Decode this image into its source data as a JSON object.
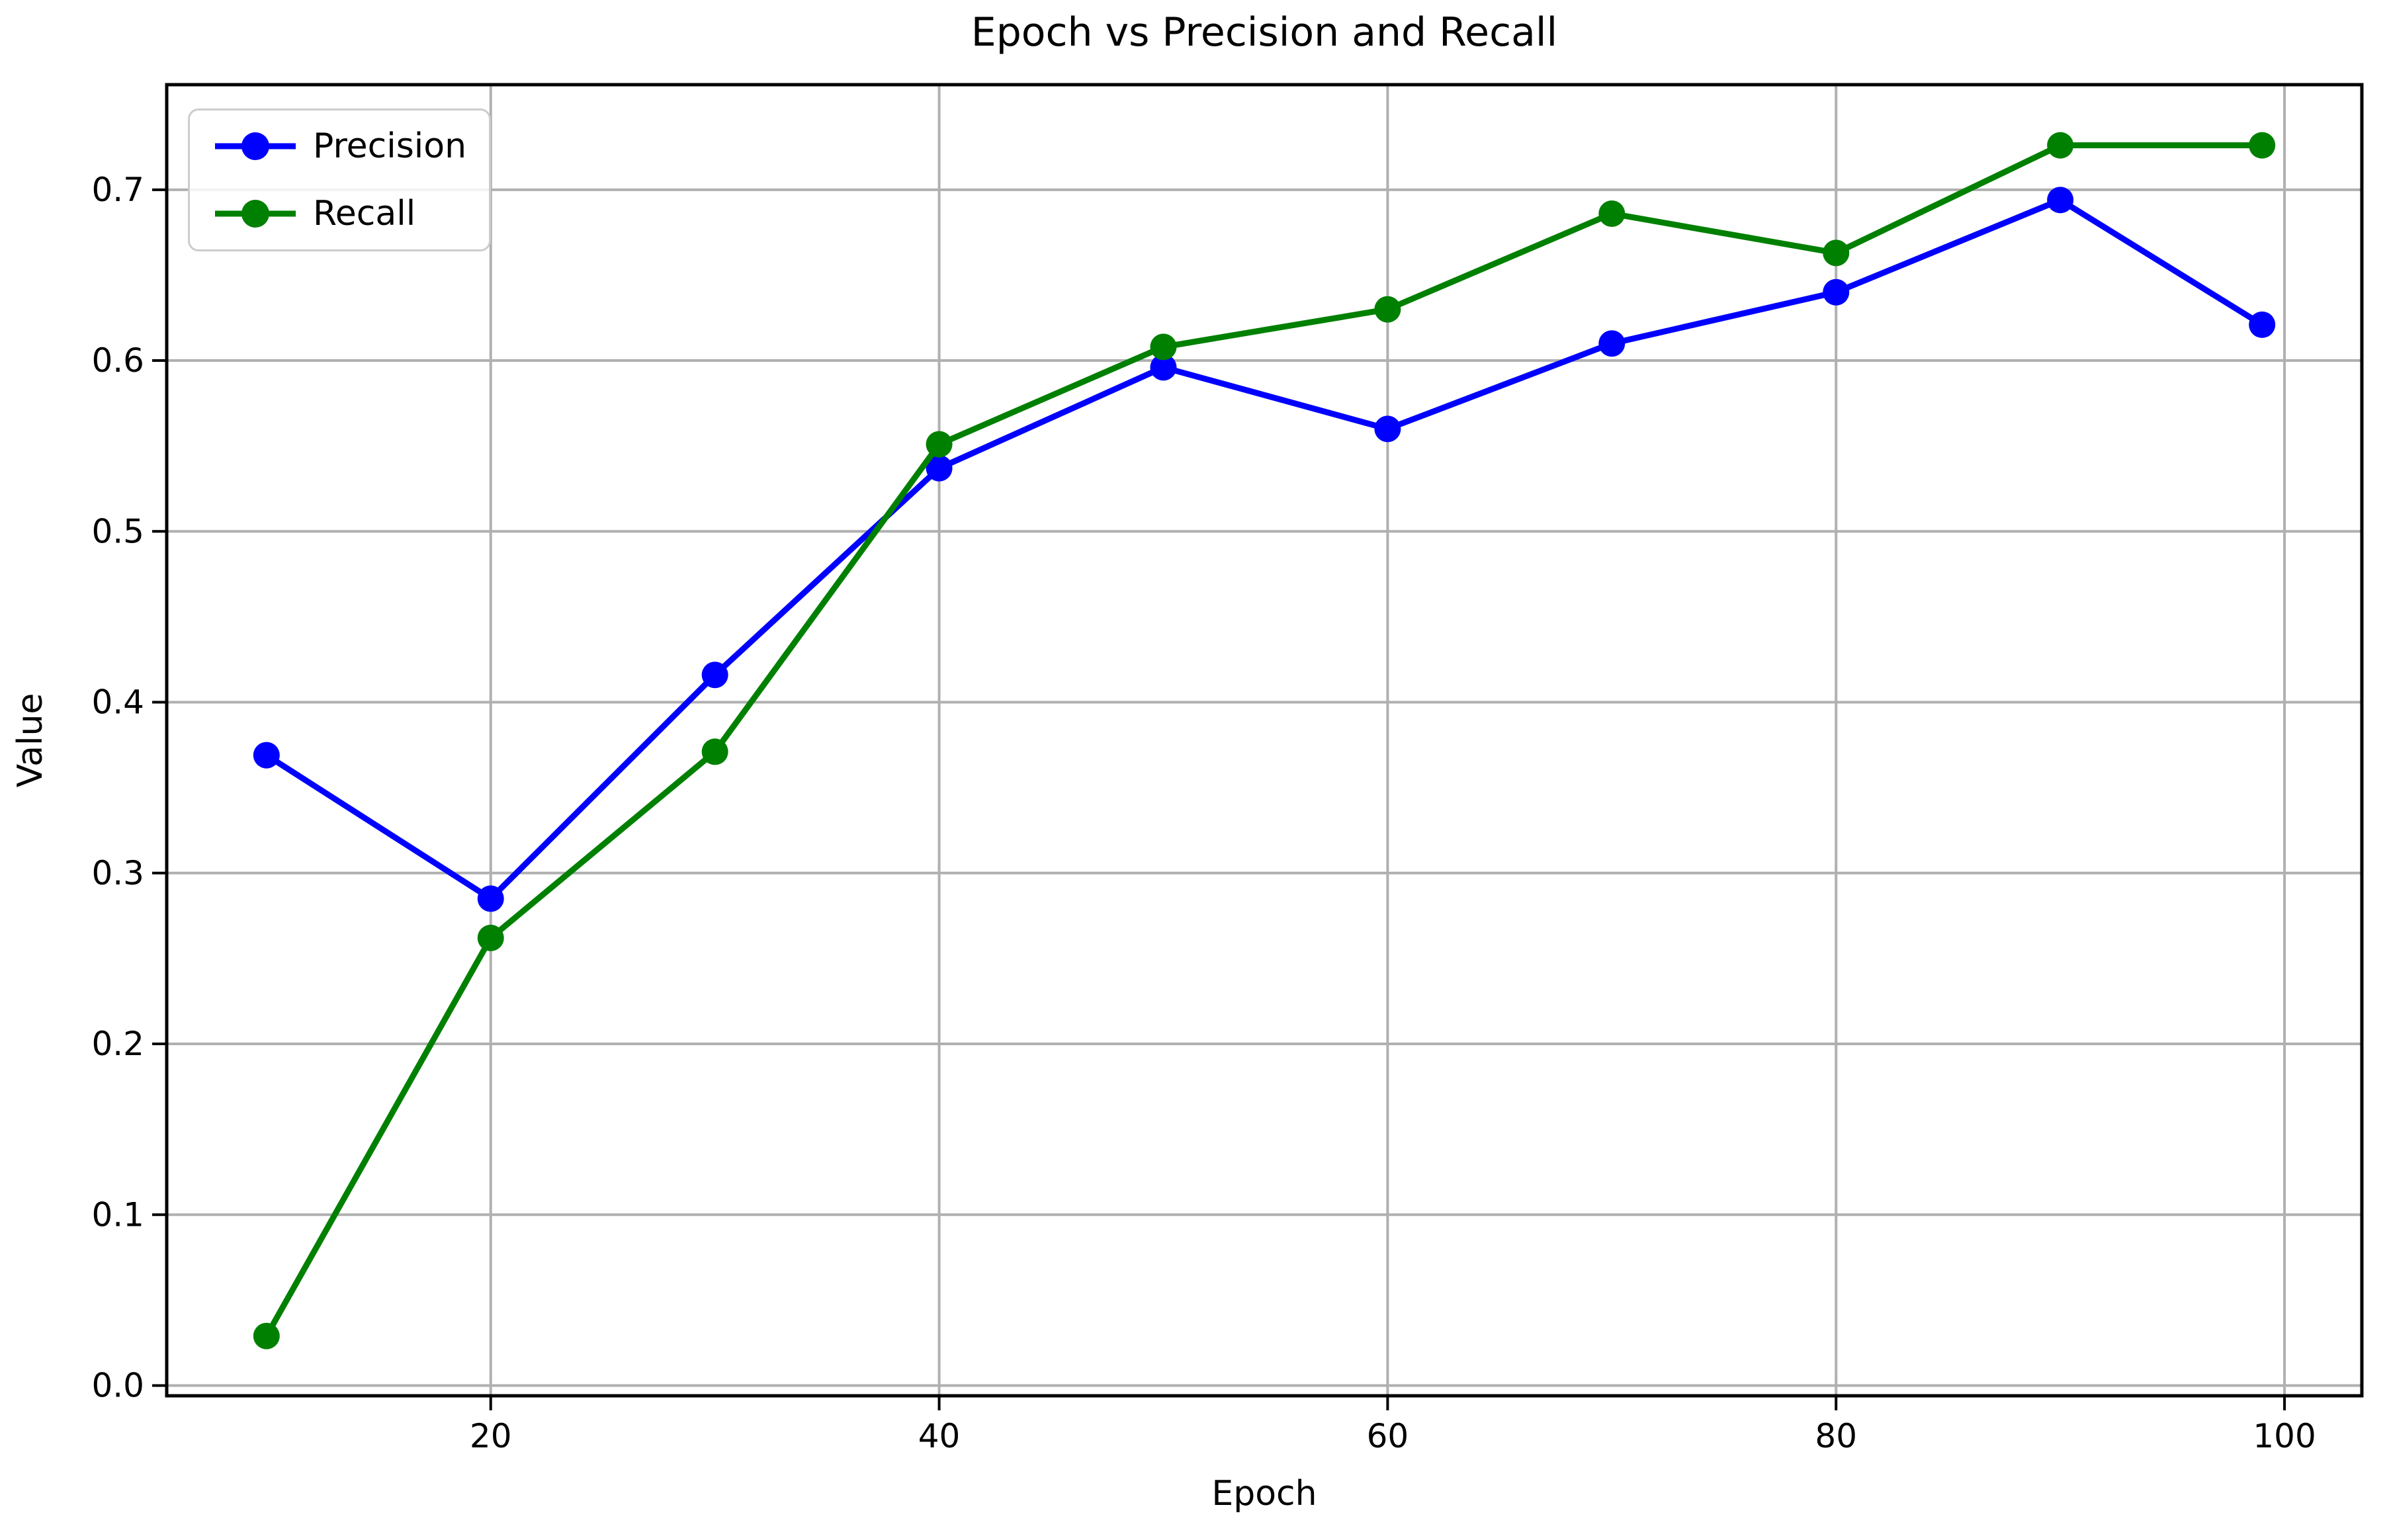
{
  "chart_data": {
    "type": "line",
    "title": "Epoch vs Precision and Recall",
    "xlabel": "Epoch",
    "ylabel": "Value",
    "x": [
      10,
      20,
      30,
      40,
      50,
      60,
      70,
      80,
      90,
      99
    ],
    "series": [
      {
        "name": "Precision",
        "color": "#0000ff",
        "values": [
          0.369,
          0.285,
          0.416,
          0.537,
          0.596,
          0.56,
          0.61,
          0.64,
          0.694,
          0.621
        ]
      },
      {
        "name": "Recall",
        "color": "#008000",
        "values": [
          0.029,
          0.262,
          0.371,
          0.551,
          0.608,
          0.63,
          0.686,
          0.663,
          0.726,
          0.726
        ]
      }
    ],
    "xlim": [
      5.55,
      103.45
    ],
    "ylim": [
      -0.006,
      0.7615
    ],
    "x_ticks": [
      20,
      40,
      60,
      80,
      100
    ],
    "y_ticks": [
      "0.0",
      "0.1",
      "0.2",
      "0.3",
      "0.4",
      "0.5",
      "0.6",
      "0.7"
    ],
    "grid": true,
    "legend_position": "upper left",
    "grid_color": "#b0b0b0",
    "axis_color": "#000000",
    "background": "#ffffff"
  }
}
